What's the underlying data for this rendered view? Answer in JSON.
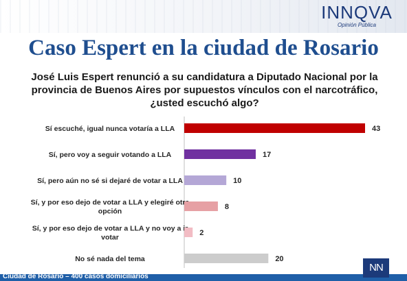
{
  "header": {
    "logo_text": "INNQVA",
    "logo_subtitle": "Opinión Pública"
  },
  "title": "Caso Espert en la ciudad de Rosario",
  "question": "José Luis Espert renunció a su candidatura a Diputado Nacional por la provincia de Buenos Aires por supuestos vínculos con el narcotráfico, ¿usted escuchó algo?",
  "chart_data": {
    "type": "bar",
    "orientation": "horizontal",
    "title": "",
    "xlabel": "",
    "ylabel": "",
    "xlim": [
      0,
      43
    ],
    "grid": false,
    "legend": "none",
    "categories": [
      [
        "Sí escuché, igual nunca votaría a LLA"
      ],
      [
        "Sí, pero voy a seguir votando a LLA"
      ],
      [
        "Sí, pero aún no sé si dejaré de votar a LLA"
      ],
      [
        "Sí, y por eso dejo de votar a LLA y elegiré otra",
        "opción"
      ],
      [
        "Sí, y por eso dejo de  votar a LLA y no voy a ir",
        "votar"
      ],
      [
        "No sé nada del tema"
      ]
    ],
    "values": [
      43,
      17,
      10,
      8,
      2,
      20
    ],
    "colors": [
      "#c00000",
      "#7030a0",
      "#b4a7d6",
      "#e6a0a4",
      "#f2bcc4",
      "#cccccc"
    ],
    "axis_color": "#bfbfbf"
  },
  "footer": {
    "text": "Ciudad de Rosario – 400 casos domiciliarios",
    "color": "#1f5fa8"
  },
  "corner_badge": {
    "text": "NN",
    "color": "#1c3a7a"
  }
}
